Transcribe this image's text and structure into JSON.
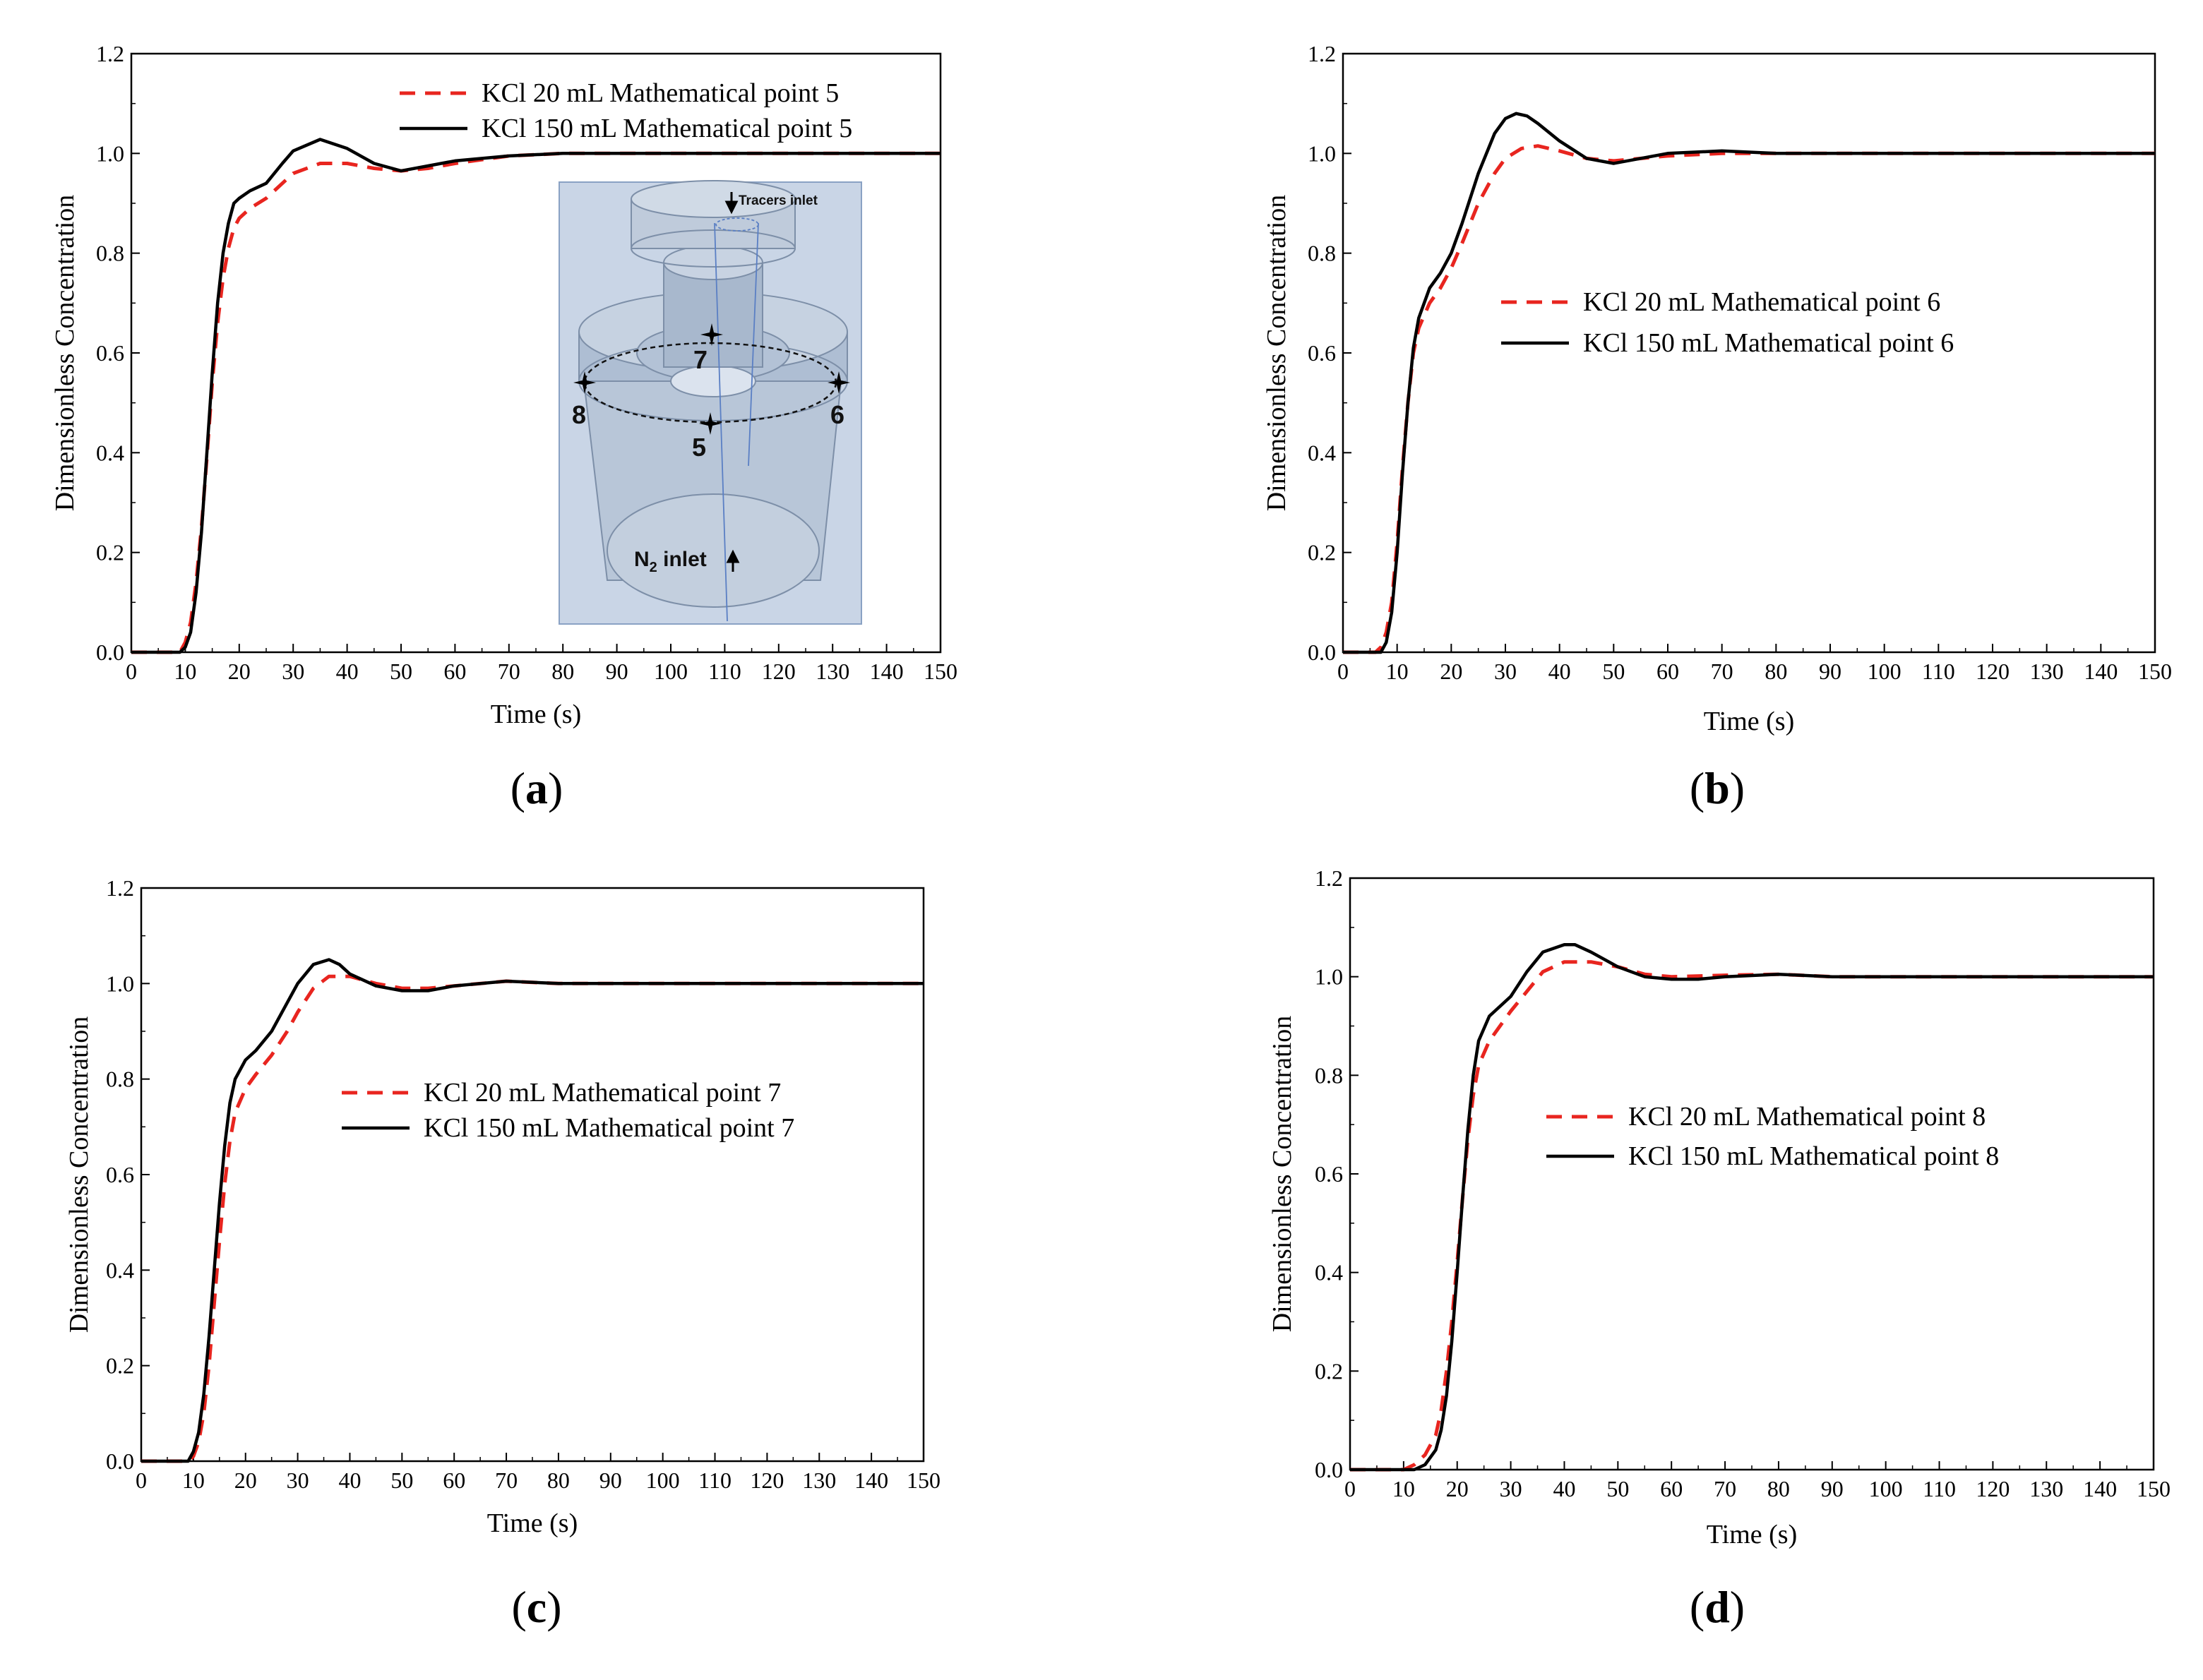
{
  "figure": {
    "panel_labels": [
      "(a)",
      "(b)",
      "(c)",
      "(d)"
    ],
    "colors": {
      "series_20mL": "#e8251f",
      "series_150mL": "#000000",
      "axis": "#000000",
      "inset_bg": "#c9d5e6"
    }
  },
  "inset": {
    "tracers_label": "Tracers inlet",
    "n2_label": "N",
    "n2_subscript": "2",
    "n2_suffix": " inlet",
    "point_labels": [
      "7",
      "8",
      "5",
      "6"
    ]
  },
  "chart_data": [
    {
      "type": "line",
      "panel": "(a)",
      "xlabel": "Time (s)",
      "ylabel": "Dimensionless Concentration",
      "xlim": [
        0,
        150
      ],
      "ylim": [
        0,
        1.2
      ],
      "xticks": [
        0,
        10,
        20,
        30,
        40,
        50,
        60,
        70,
        80,
        90,
        100,
        110,
        120,
        130,
        140,
        150
      ],
      "yticks": [
        "0.0",
        "0.2",
        "0.4",
        "0.6",
        "0.8",
        "1.0",
        "1.2"
      ],
      "legend_position": "top-right",
      "series": [
        {
          "name": "KCl 20 mL Mathematical point 5",
          "style": "dashed",
          "x": [
            0,
            9,
            10,
            11,
            12,
            13,
            14,
            15,
            16,
            17,
            18,
            19,
            20,
            22,
            25,
            28,
            30,
            35,
            40,
            45,
            50,
            55,
            60,
            70,
            80,
            90,
            100,
            150
          ],
          "y": [
            0,
            0,
            0.02,
            0.06,
            0.14,
            0.25,
            0.39,
            0.54,
            0.66,
            0.75,
            0.81,
            0.85,
            0.87,
            0.89,
            0.91,
            0.94,
            0.96,
            0.98,
            0.98,
            0.97,
            0.965,
            0.97,
            0.98,
            0.995,
            1.0,
            1.0,
            1.0,
            1.0
          ]
        },
        {
          "name": "KCl 150 mL Mathematical point 5",
          "style": "solid",
          "x": [
            0,
            9,
            10,
            11,
            12,
            13,
            14,
            15,
            16,
            17,
            18,
            19,
            20,
            22,
            25,
            28,
            30,
            35,
            40,
            45,
            50,
            55,
            60,
            70,
            80,
            90,
            100,
            150
          ],
          "y": [
            0,
            0,
            0.01,
            0.04,
            0.12,
            0.24,
            0.4,
            0.56,
            0.7,
            0.8,
            0.86,
            0.9,
            0.91,
            0.925,
            0.94,
            0.98,
            1.005,
            1.028,
            1.01,
            0.98,
            0.965,
            0.975,
            0.985,
            0.995,
            1.0,
            1.0,
            1.0,
            1.0
          ]
        }
      ]
    },
    {
      "type": "line",
      "panel": "(b)",
      "xlabel": "Time (s)",
      "ylabel": "Dimensionless Concentration",
      "xlim": [
        0,
        150
      ],
      "ylim": [
        0,
        1.2
      ],
      "xticks": [
        0,
        10,
        20,
        30,
        40,
        50,
        60,
        70,
        80,
        90,
        100,
        110,
        120,
        130,
        140,
        150
      ],
      "yticks": [
        "0.0",
        "0.2",
        "0.4",
        "0.6",
        "0.8",
        "1.0",
        "1.2"
      ],
      "legend_position": "center",
      "series": [
        {
          "name": "KCl 20 mL Mathematical point 6",
          "style": "dashed",
          "x": [
            0,
            6,
            7,
            8,
            9,
            10,
            11,
            12,
            13,
            14,
            16,
            18,
            20,
            22,
            25,
            28,
            30,
            33,
            36,
            40,
            45,
            50,
            60,
            70,
            80,
            90,
            100,
            150
          ],
          "y": [
            0,
            0,
            0.01,
            0.04,
            0.1,
            0.22,
            0.37,
            0.5,
            0.6,
            0.65,
            0.7,
            0.73,
            0.77,
            0.82,
            0.9,
            0.96,
            0.99,
            1.01,
            1.015,
            1.005,
            0.99,
            0.985,
            0.995,
            1.0,
            1.0,
            1.0,
            1.0,
            1.0
          ]
        },
        {
          "name": "KCl 150 mL Mathematical point 6",
          "style": "solid",
          "x": [
            0,
            7,
            8,
            9,
            10,
            11,
            12,
            13,
            14,
            16,
            18,
            20,
            22,
            25,
            28,
            30,
            32,
            34,
            36,
            40,
            45,
            50,
            60,
            70,
            80,
            90,
            100,
            150
          ],
          "y": [
            0,
            0,
            0.02,
            0.08,
            0.2,
            0.36,
            0.5,
            0.61,
            0.67,
            0.73,
            0.76,
            0.8,
            0.86,
            0.96,
            1.04,
            1.07,
            1.08,
            1.075,
            1.06,
            1.025,
            0.99,
            0.98,
            1.0,
            1.005,
            1.0,
            1.0,
            1.0,
            1.0
          ]
        }
      ]
    },
    {
      "type": "line",
      "panel": "(c)",
      "xlabel": "Time (s)",
      "ylabel": "Dimensionless Concentration",
      "xlim": [
        0,
        150
      ],
      "ylim": [
        0,
        1.2
      ],
      "xticks": [
        0,
        10,
        20,
        30,
        40,
        50,
        60,
        70,
        80,
        90,
        100,
        110,
        120,
        130,
        140,
        150
      ],
      "yticks": [
        "0.0",
        "0.2",
        "0.4",
        "0.6",
        "0.8",
        "1.0",
        "1.2"
      ],
      "legend_position": "center",
      "series": [
        {
          "name": "KCl 20 mL Mathematical point 7",
          "style": "dashed",
          "x": [
            0,
            9,
            10,
            11,
            12,
            13,
            14,
            15,
            16,
            17,
            18,
            20,
            22,
            25,
            28,
            30,
            33,
            36,
            40,
            45,
            50,
            55,
            60,
            70,
            80,
            90,
            100,
            150
          ],
          "y": [
            0,
            0,
            0.01,
            0.04,
            0.1,
            0.2,
            0.33,
            0.46,
            0.58,
            0.67,
            0.73,
            0.78,
            0.81,
            0.85,
            0.9,
            0.94,
            0.99,
            1.015,
            1.015,
            1.0,
            0.99,
            0.99,
            0.995,
            1.005,
            1.0,
            1.0,
            1.0,
            1.0
          ]
        },
        {
          "name": "KCl 150 mL Mathematical point 7",
          "style": "solid",
          "x": [
            0,
            9,
            10,
            11,
            12,
            13,
            14,
            15,
            16,
            17,
            18,
            20,
            22,
            25,
            28,
            30,
            33,
            36,
            38,
            40,
            45,
            50,
            55,
            60,
            70,
            80,
            90,
            150
          ],
          "y": [
            0,
            0,
            0.02,
            0.06,
            0.14,
            0.26,
            0.4,
            0.54,
            0.66,
            0.75,
            0.8,
            0.84,
            0.86,
            0.9,
            0.96,
            1.0,
            1.04,
            1.05,
            1.04,
            1.02,
            0.995,
            0.985,
            0.985,
            0.995,
            1.005,
            1.0,
            1.0,
            1.0
          ]
        }
      ]
    },
    {
      "type": "line",
      "panel": "(d)",
      "xlabel": "Time (s)",
      "ylabel": "Dimensionless Concentration",
      "xlim": [
        0,
        150
      ],
      "ylim": [
        0,
        1.2
      ],
      "xticks": [
        0,
        10,
        20,
        30,
        40,
        50,
        60,
        70,
        80,
        90,
        100,
        110,
        120,
        130,
        140,
        150
      ],
      "yticks": [
        "0.0",
        "0.2",
        "0.4",
        "0.6",
        "0.8",
        "1.0",
        "1.2"
      ],
      "legend_position": "center",
      "series": [
        {
          "name": "KCl 20 mL Mathematical point 8",
          "style": "dashed",
          "x": [
            0,
            10,
            12,
            14,
            16,
            17,
            18,
            19,
            20,
            21,
            22,
            23,
            24,
            26,
            28,
            30,
            33,
            36,
            40,
            45,
            50,
            55,
            60,
            70,
            80,
            90,
            100,
            150
          ],
          "y": [
            0,
            0,
            0.01,
            0.03,
            0.07,
            0.12,
            0.2,
            0.3,
            0.42,
            0.55,
            0.67,
            0.76,
            0.82,
            0.87,
            0.9,
            0.93,
            0.97,
            1.01,
            1.03,
            1.03,
            1.02,
            1.005,
            1.0,
            1.003,
            1.005,
            1.0,
            1.0,
            1.0
          ]
        },
        {
          "name": "KCl 150 mL Mathematical point 8",
          "style": "solid",
          "x": [
            0,
            12,
            14,
            16,
            17,
            18,
            19,
            20,
            21,
            22,
            23,
            24,
            26,
            28,
            30,
            33,
            36,
            40,
            42,
            45,
            50,
            55,
            60,
            65,
            70,
            80,
            90,
            150
          ],
          "y": [
            0,
            0,
            0.01,
            0.04,
            0.08,
            0.15,
            0.26,
            0.4,
            0.55,
            0.69,
            0.8,
            0.87,
            0.92,
            0.94,
            0.96,
            1.01,
            1.05,
            1.065,
            1.065,
            1.05,
            1.02,
            1.0,
            0.995,
            0.995,
            1.0,
            1.005,
            1.0,
            1.0
          ]
        }
      ]
    }
  ]
}
